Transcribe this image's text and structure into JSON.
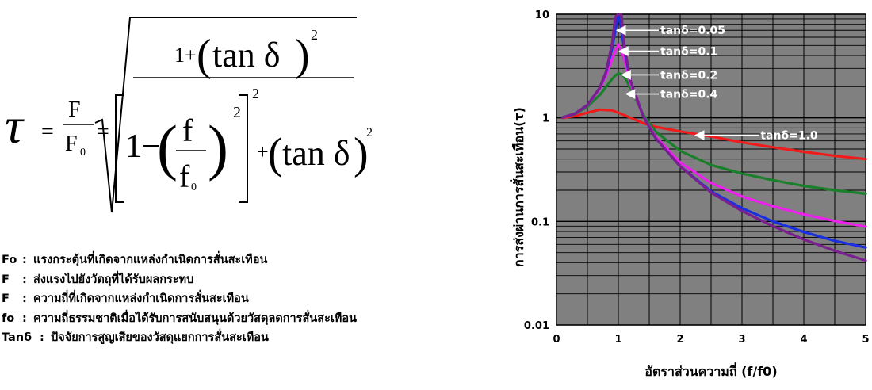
{
  "formula": {
    "tau": "τ",
    "F": "F",
    "F0": "F",
    "sub0": "0",
    "eq": "=",
    "one_plus": "1+",
    "tan_delta": "tan δ",
    "exp2": "2",
    "one_minus": "1−",
    "f": "f",
    "f0": "f",
    "plus": "+"
  },
  "legend": [
    {
      "symbol": "Fo",
      "colon": ":",
      "text": "แรงกระตุ้นที่เกิดจากแหล่งกำเนิดการสั่นสะเทือน"
    },
    {
      "symbol": "F",
      "colon": ":",
      "text": "ส่งแรงไปยังวัตถุที่ได้รับผลกระทบ"
    },
    {
      "symbol": "F",
      "colon": ":",
      "text": "ความถี่ที่เกิดจากแหล่งกำเนิดการสั่นสะเทือน"
    },
    {
      "symbol": "fo",
      "colon": ":",
      "text": "ความถี่ธรรมชาติเมื่อได้รับการสนับสนุนด้วยวัสดุลดการสั่นสะเทือน"
    },
    {
      "symbol": "Tanδ",
      "colon": ":",
      "text": "ปัจจัยการสูญเสียของวัสดุแยกการสั่นสะเทือน"
    }
  ],
  "chart_data": {
    "type": "line",
    "x_scale": "linear",
    "y_scale": "log",
    "xlim": [
      0,
      5
    ],
    "ylim": [
      0.01,
      10
    ],
    "x_ticks": [
      "0",
      "1",
      "2",
      "3",
      "4",
      "5"
    ],
    "y_ticks": [
      "0.01",
      "0.1",
      "1",
      "10"
    ],
    "xlabel": "อัตราส่วนความถี่ (f/f0)",
    "ylabel": "การส่งผ่านการสั่นสะเทือน(τ)",
    "grid": true,
    "plot_background": "#808080",
    "series": [
      {
        "name": "tanδ=0.05",
        "color": "#7a1f8f",
        "x": [
          0.1,
          0.3,
          0.5,
          0.7,
          0.8,
          0.9,
          0.95,
          1.0,
          1.05,
          1.1,
          1.2,
          1.4,
          1.6,
          2.0,
          2.5,
          3.0,
          3.5,
          4.0,
          4.5,
          5.0
        ],
        "y": [
          1.01,
          1.1,
          1.33,
          1.96,
          2.78,
          5.24,
          9.4,
          19.8,
          9.8,
          4.8,
          2.27,
          1.04,
          0.64,
          0.34,
          0.19,
          0.126,
          0.09,
          0.067,
          0.052,
          0.042
        ]
      },
      {
        "name": "tanδ=0.1",
        "color": "#1a2fe0",
        "x": [
          0.1,
          0.3,
          0.5,
          0.7,
          0.8,
          0.9,
          0.95,
          1.0,
          1.05,
          1.1,
          1.2,
          1.4,
          1.6,
          2.0,
          2.5,
          3.0,
          3.5,
          4.0,
          4.5,
          5.0
        ],
        "y": [
          1.01,
          1.1,
          1.33,
          1.95,
          2.73,
          4.7,
          6.9,
          10.05,
          7.0,
          4.4,
          2.25,
          1.04,
          0.64,
          0.34,
          0.195,
          0.134,
          0.1,
          0.079,
          0.065,
          0.056
        ]
      },
      {
        "name": "tanδ=0.2",
        "color": "#ee20ee",
        "x": [
          0.1,
          0.3,
          0.5,
          0.7,
          0.8,
          0.9,
          0.95,
          1.0,
          1.05,
          1.1,
          1.2,
          1.4,
          1.6,
          2.0,
          2.5,
          3.0,
          3.5,
          4.0,
          4.5,
          5.0
        ],
        "y": [
          1.01,
          1.1,
          1.32,
          1.91,
          2.54,
          3.7,
          4.4,
          5.1,
          4.5,
          3.6,
          2.13,
          1.04,
          0.66,
          0.37,
          0.235,
          0.174,
          0.14,
          0.117,
          0.101,
          0.089
        ]
      },
      {
        "name": "tanδ=0.4",
        "color": "#1a7f2a",
        "x": [
          0.1,
          0.3,
          0.5,
          0.7,
          0.8,
          0.9,
          0.95,
          1.0,
          1.05,
          1.1,
          1.2,
          1.4,
          1.6,
          2.0,
          2.5,
          3.0,
          3.5,
          4.0,
          4.5,
          5.0
        ],
        "y": [
          1.01,
          1.09,
          1.28,
          1.67,
          1.98,
          2.37,
          2.56,
          2.69,
          2.64,
          2.48,
          1.92,
          1.08,
          0.74,
          0.48,
          0.35,
          0.29,
          0.25,
          0.22,
          0.2,
          0.185
        ]
      },
      {
        "name": "tanδ=1.0",
        "color": "#ee1c1c",
        "x": [
          0.1,
          0.3,
          0.5,
          0.7,
          0.9,
          1.0,
          1.2,
          1.4,
          1.6,
          2.0,
          2.5,
          3.0,
          3.5,
          4.0,
          4.5,
          5.0
        ],
        "y": [
          1.0,
          1.04,
          1.12,
          1.2,
          1.18,
          1.12,
          1.0,
          0.89,
          0.82,
          0.74,
          0.66,
          0.58,
          0.52,
          0.47,
          0.43,
          0.4
        ]
      }
    ],
    "annotations": [
      {
        "text": "tanδ=0.05",
        "x_from": 1.68,
        "x_to": 0.98,
        "y": 7.0
      },
      {
        "text": "tanδ=0.1",
        "x_from": 1.68,
        "x_to": 1.02,
        "y": 4.4
      },
      {
        "text": "tanδ=0.2",
        "x_from": 1.68,
        "x_to": 1.06,
        "y": 2.6
      },
      {
        "text": "tanδ=0.4",
        "x_from": 1.68,
        "x_to": 1.13,
        "y": 1.7
      },
      {
        "text": "tanδ=1.0",
        "x_from": 3.3,
        "x_to": 2.25,
        "y": 0.68
      }
    ]
  }
}
